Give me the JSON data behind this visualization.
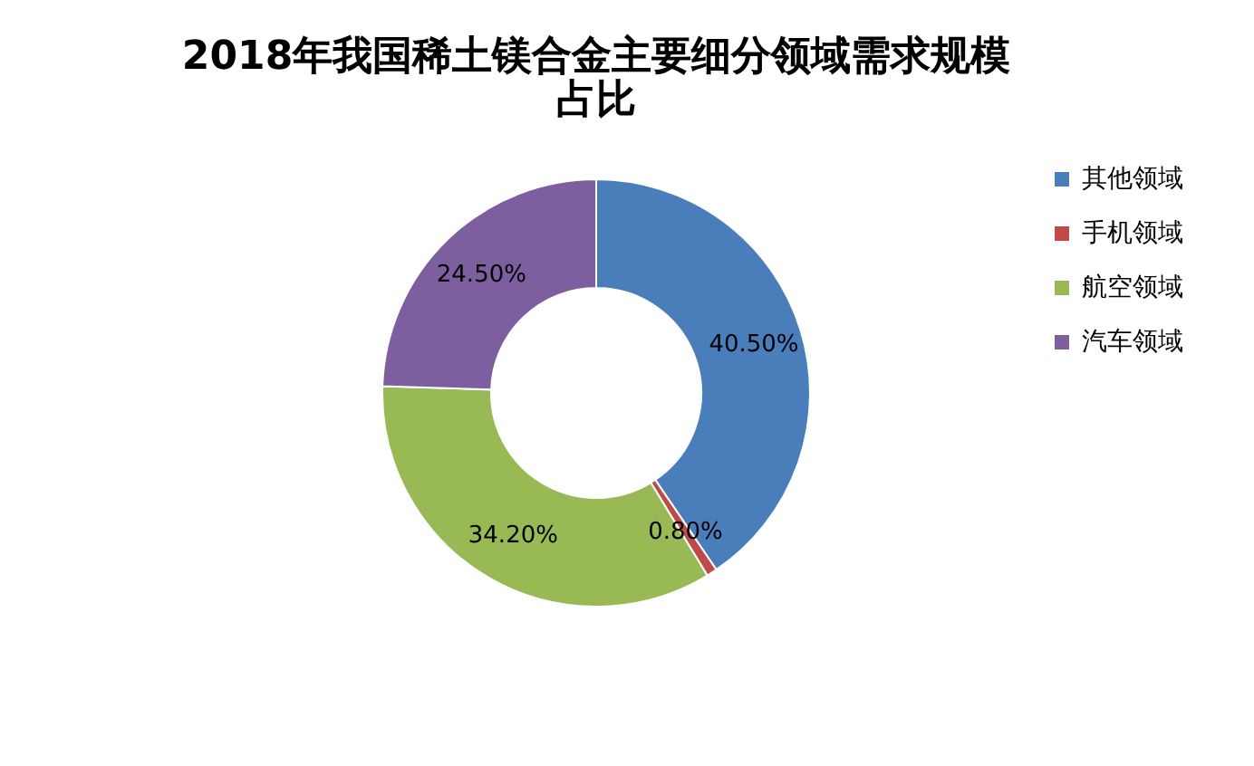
{
  "chart_data": {
    "type": "donut",
    "title": "2018年我国稀土镁合金主要细分领域需求规模占比",
    "categories": [
      "其他领域",
      "手机领域",
      "航空领域",
      "汽车领域"
    ],
    "values": [
      40.5,
      0.8,
      34.2,
      24.5
    ],
    "colors": [
      "#4a7ebb",
      "#be4b48",
      "#98b954",
      "#7d5fa0"
    ],
    "value_labels": [
      "40.50%",
      "0.80%",
      "34.20%",
      "24.50%"
    ],
    "legend": "right"
  }
}
